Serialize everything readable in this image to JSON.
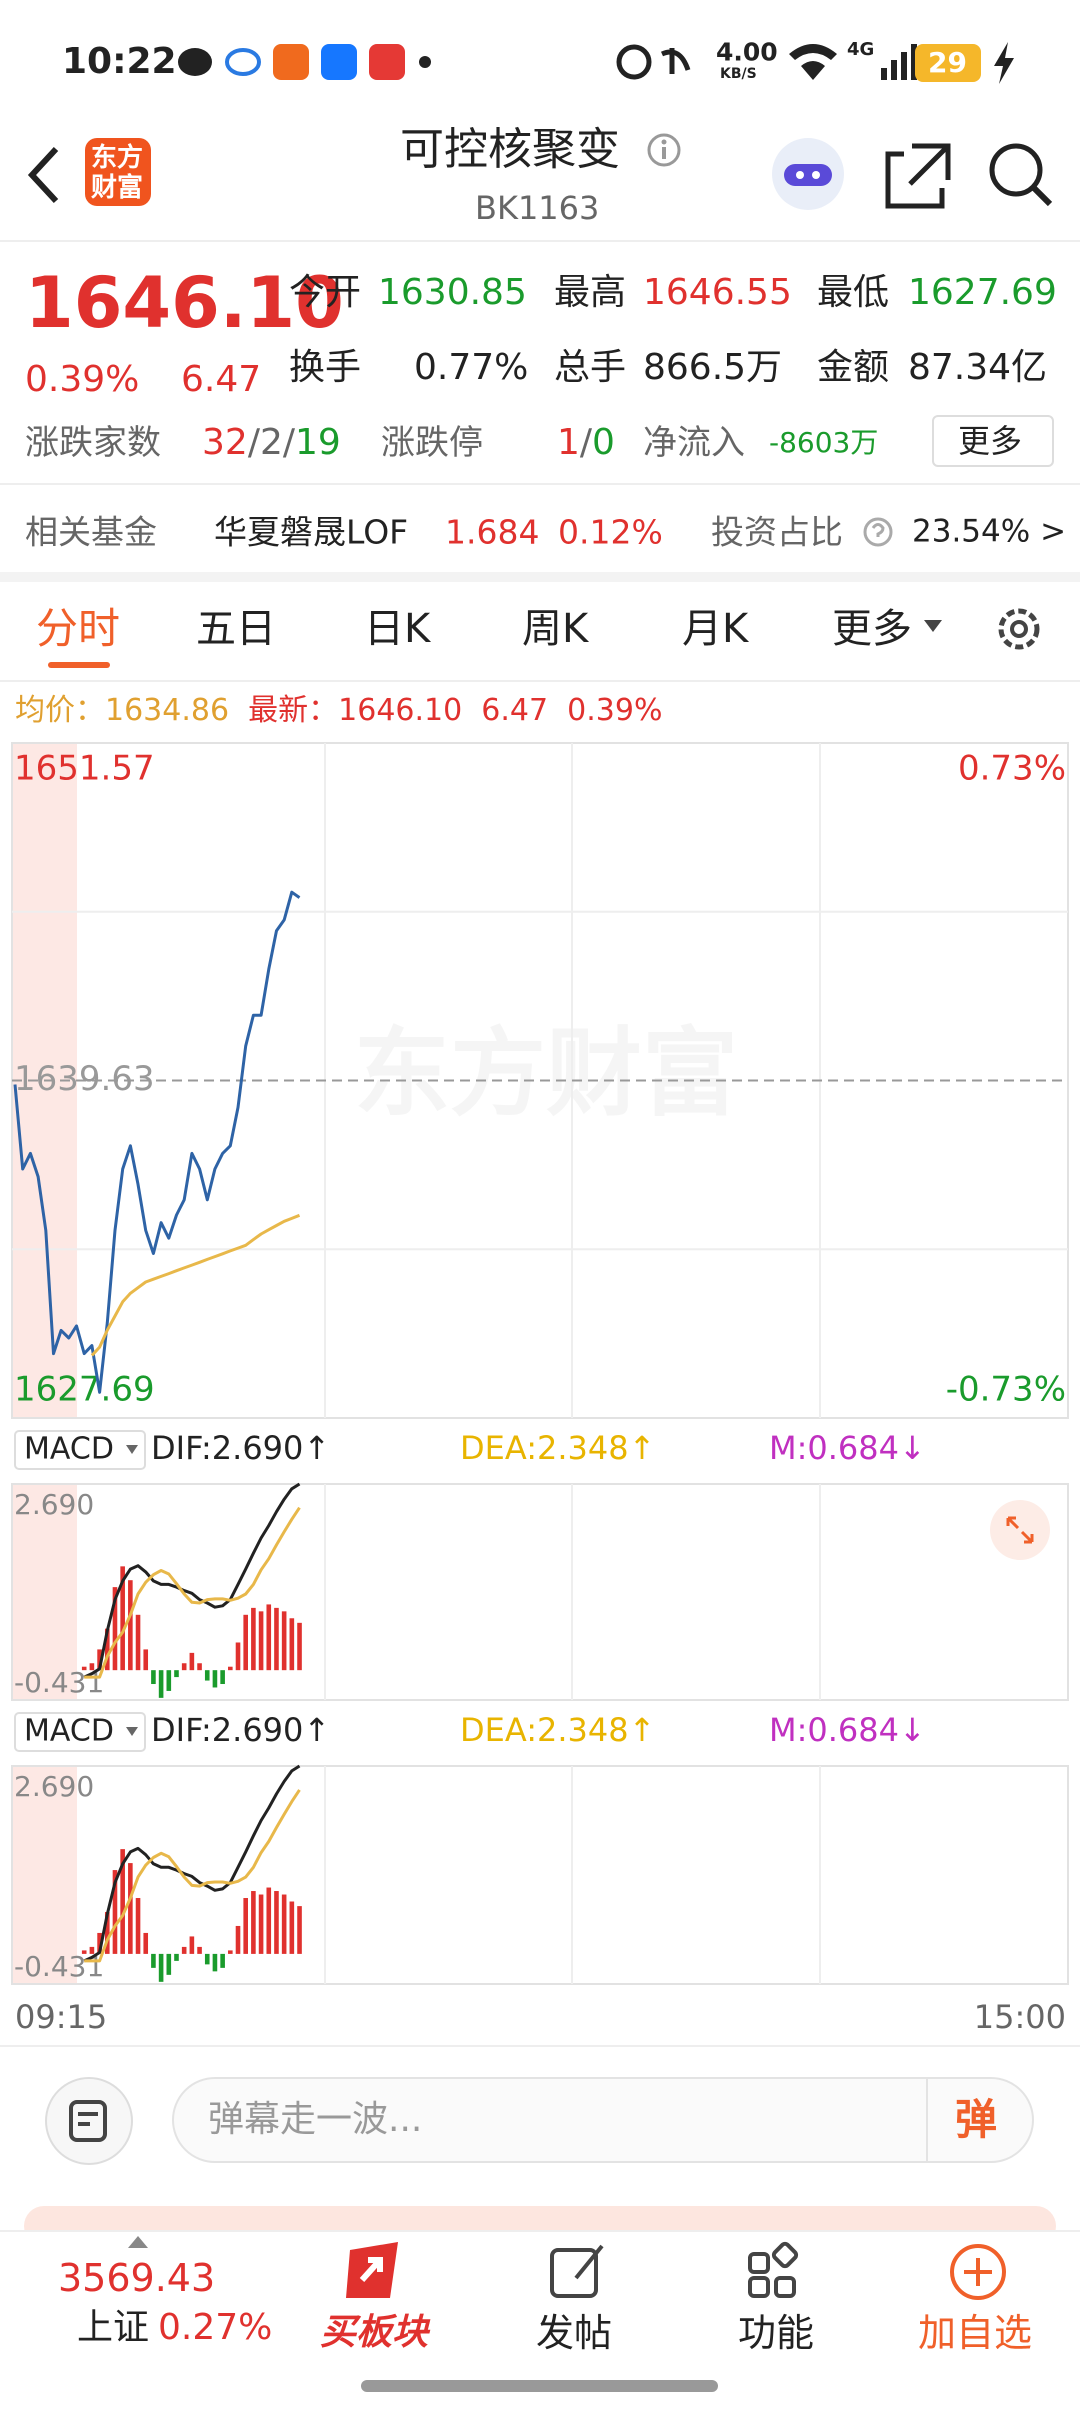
{
  "status_bar": {
    "time": "10:22",
    "net_speed": "4.00",
    "net_unit": "KB/S",
    "signal": "4G",
    "battery": "29"
  },
  "header": {
    "logo": [
      "东方",
      "财富"
    ],
    "title": "可控核聚变",
    "code": "BK1163"
  },
  "quote": {
    "price": "1646.10",
    "change_pct": "0.39%",
    "change": "6.47",
    "stats": [
      {
        "label": "今开",
        "value": "1630.85"
      },
      {
        "label": "最高",
        "value": "1646.55"
      },
      {
        "label": "最低",
        "value": "1627.69"
      },
      {
        "label": "换手",
        "value": "0.77%"
      },
      {
        "label": "总手",
        "value": "866.5万"
      },
      {
        "label": "金额",
        "value": "87.34亿"
      }
    ],
    "breadth_label": "涨跌家数",
    "breadth": [
      "32",
      "/2/",
      "19"
    ],
    "limit_label": "涨跌停",
    "limit": [
      "1",
      "/",
      "0"
    ],
    "flow_label": "净流入",
    "flow": "-8603万",
    "more": "更多"
  },
  "fund": {
    "label": "相关基金",
    "name": "华夏磐晟LOF",
    "price": "1.684",
    "change": "0.12%",
    "ratio_label": "投资占比",
    "ratio": "23.54%",
    "arrow": ">"
  },
  "tabs": [
    "分时",
    "五日",
    "日K",
    "周K",
    "月K",
    "更多"
  ],
  "summary": {
    "avg_label": "均价：",
    "avg": "1634.86",
    "last_label": "最新：",
    "last": "1646.10",
    "change": "6.47",
    "change_pct": "0.39%"
  },
  "watermark": "东方财富",
  "time_labels": [
    "09:15",
    "15:00"
  ],
  "chart_data": [
    {
      "type": "line",
      "up_color": "#e0312e",
      "down_color": "#1a9b2c",
      "ylim": [
        1627.69,
        1651.57
      ],
      "yticks": [
        1651.57,
        1639.63,
        1627.69
      ],
      "y2lim": [
        -0.73,
        0.73
      ],
      "y2ticks": [
        {
          "value": 0.73,
          "label": "0.73%"
        },
        {
          "value": -0.73,
          "label": "-0.73%"
        }
      ],
      "series": [
        {
          "color": "#2e63a6",
          "values": [
            1639.49,
            1636.5,
            1637.05,
            1636.23,
            1634.33,
            1629.97,
            1630.79,
            1630.52,
            1630.95,
            1629.97,
            1630.25,
            1628.6,
            1631.06,
            1634.33,
            1636.5,
            1637.32,
            1635.96,
            1634.33,
            1633.51,
            1634.6,
            1634.05,
            1634.87,
            1635.41,
            1637.05,
            1636.5,
            1635.41,
            1636.5,
            1637.05,
            1637.32,
            1638.68,
            1640.85,
            1641.94,
            1641.94,
            1643.57,
            1644.93,
            1645.31,
            1646.29,
            1646.1
          ]
        },
        {
          "color": "#e8b84a",
          "values": [
            null,
            null,
            null,
            null,
            null,
            null,
            null,
            null,
            null,
            null,
            1629.9,
            1630.2,
            1630.8,
            1631.3,
            1631.8,
            1632.1,
            1632.3,
            1632.5,
            1632.6,
            1632.7,
            1632.8,
            1632.9,
            1633.0,
            1633.1,
            1633.2,
            1633.3,
            1633.4,
            1633.5,
            1633.6,
            1633.7,
            1633.8,
            1634.0,
            1634.2,
            1634.35,
            1634.5,
            1634.65,
            1634.75,
            1634.86
          ]
        }
      ]
    },
    {
      "type": "macd",
      "indicator": "MACD",
      "up_color": "#e0312e",
      "down_color": "#1a9b2c",
      "legend": [
        {
          "label": "DIF:2.690↑",
          "color": "#222222"
        },
        {
          "label": "DEA:2.348↑",
          "color": "#e8b400"
        },
        {
          "label": "M:0.684↓",
          "color": "#c030c0"
        }
      ],
      "ylim": [
        -0.431,
        2.69
      ],
      "yticks": [
        {
          "value": 2.69,
          "label": "2.690"
        },
        {
          "value": -0.431,
          "label": "-0.431"
        }
      ],
      "series": [
        {
          "color": "#222222",
          "values": [
            null,
            null,
            null,
            null,
            null,
            null,
            null,
            null,
            null,
            -0.1,
            -0.05,
            0.02,
            0.57,
            1.02,
            1.29,
            1.46,
            1.51,
            1.42,
            1.29,
            1.24,
            1.24,
            1.2,
            1.15,
            1.11,
            1.02,
            0.97,
            0.91,
            0.93,
            1.02,
            1.24,
            1.46,
            1.69,
            1.91,
            2.09,
            2.29,
            2.47,
            2.62,
            2.69
          ]
        },
        {
          "color": "#e8b84a",
          "values": [
            null,
            null,
            null,
            null,
            null,
            null,
            null,
            null,
            null,
            -0.1,
            -0.1,
            -0.1,
            0.2,
            0.4,
            0.55,
            0.8,
            1.1,
            1.27,
            1.38,
            1.44,
            1.39,
            1.25,
            1.1,
            0.98,
            0.97,
            1.02,
            1.03,
            1.03,
            1.01,
            1.04,
            1.1,
            1.24,
            1.45,
            1.61,
            1.81,
            2.0,
            2.18,
            2.348
          ]
        }
      ],
      "bars": [
        null,
        null,
        null,
        null,
        null,
        null,
        null,
        null,
        null,
        0.05,
        0.1,
        0.3,
        0.6,
        1.2,
        1.5,
        1.3,
        0.8,
        0.3,
        -0.2,
        -0.4,
        -0.3,
        -0.1,
        0.1,
        0.25,
        0.1,
        -0.15,
        -0.25,
        -0.2,
        0.05,
        0.4,
        0.8,
        0.9,
        0.85,
        0.95,
        0.9,
        0.85,
        0.75,
        0.684
      ]
    }
  ],
  "bottom": {
    "comment_placeholder": "弹幕走一波...",
    "danmu": "弹",
    "index_value": "3569.43",
    "index_name": "上证",
    "index_change": "0.27%",
    "nav": [
      "买板块",
      "发帖",
      "功能",
      "加自选"
    ]
  }
}
